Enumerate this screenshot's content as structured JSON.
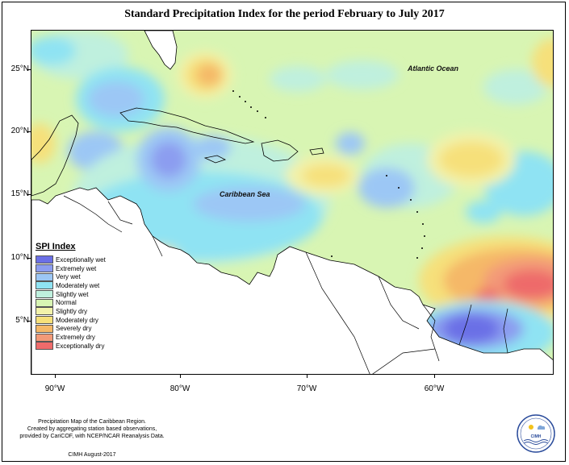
{
  "title": "Standard Precipitation Index for the period February to July 2017",
  "map": {
    "lat_labels": [
      "25°N",
      "20°N",
      "15°N",
      "10°N",
      "5°N"
    ],
    "lon_labels": [
      "90°W",
      "80°W",
      "70°W",
      "60°W"
    ],
    "labels": {
      "atlantic": "Atlantic Ocean",
      "caribbean": "Caribbean Sea"
    },
    "colors": {
      "normal": "#d8f5b3",
      "land": "#ffffff",
      "coast": "#000000"
    }
  },
  "legend": {
    "title": "SPI Index",
    "items": [
      {
        "label": "Exceptionally wet",
        "color": "#6b6fe6"
      },
      {
        "label": "Extremely wet",
        "color": "#8c9df0"
      },
      {
        "label": "Very wet",
        "color": "#9cc7f5"
      },
      {
        "label": "Moderately wet",
        "color": "#8fe3f3"
      },
      {
        "label": "Slightly wet",
        "color": "#bff0de"
      },
      {
        "label": "Normal",
        "color": "#d8f5b3"
      },
      {
        "label": "Slightly dry",
        "color": "#f2f2aa"
      },
      {
        "label": "Moderately dry",
        "color": "#f6e07a"
      },
      {
        "label": "Severely dry",
        "color": "#f5b868"
      },
      {
        "label": "Extremely dry",
        "color": "#f39a78"
      },
      {
        "label": "Exceptionally dry",
        "color": "#ee6b6b"
      }
    ]
  },
  "footnote": {
    "line1": "Precipitation Map of the Caribbean Region.",
    "line2": "Created by aggregating station based observations,",
    "line3": "provided by CariCOF, with NCEP/NCAR Reanalysis Data.",
    "credit": "CIMH August-2017"
  },
  "logo": {
    "text": "CIMH"
  }
}
